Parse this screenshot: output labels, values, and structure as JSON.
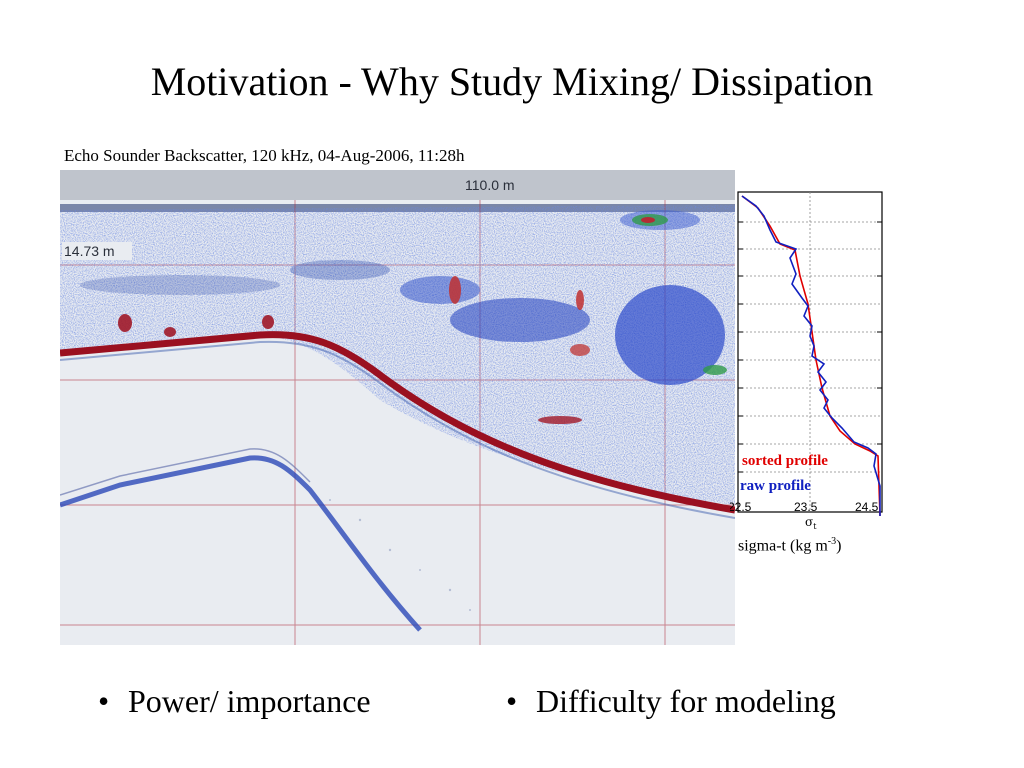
{
  "slide": {
    "title": "Motivation - Why Study Mixing/ Dissipation",
    "caption": "Echo Sounder Backscatter, 120 kHz, 04-Aug-2006, 11:28h",
    "echogram": {
      "range_label": "110.0 m",
      "depth_label": "14.73 m"
    },
    "profile": {
      "legend_sorted": "sorted profile",
      "legend_raw": "raw profile",
      "tick_labels": [
        "22.5",
        "23.5",
        "24.5"
      ],
      "axis_symbol": "σ",
      "axis_subscript": "t",
      "axis_label": "sigma-t (kg m",
      "axis_label_exp": "-3",
      "axis_label_end": ")",
      "colors": {
        "sorted": "#e00000",
        "raw": "#1020c0"
      }
    },
    "bullets": [
      {
        "glyph": "•",
        "text": "Power/ importance"
      },
      {
        "glyph": "•",
        "text": "Difficulty for modeling"
      }
    ]
  }
}
